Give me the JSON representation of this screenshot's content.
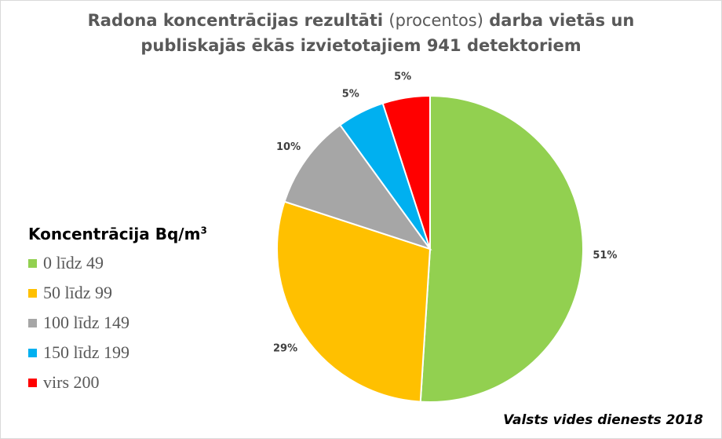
{
  "title": {
    "line1_a": "Radona koncentrācijas rezultāti ",
    "line1_b": "(procentos)",
    "line1_c": "  darba vietās un",
    "line2": "publiskajās ēkās izvietotajiem 941 detektoriem"
  },
  "legend": {
    "title_main": "Koncentrācija Bq/m",
    "title_sup": "3"
  },
  "source": "Valsts vides dienests 2018",
  "chart_data": {
    "type": "pie",
    "title": "Radona koncentrācijas rezultāti (procentos) darba vietās un publiskajās ēkās izvietotajiem 941 detektoriem",
    "legend_title": "Koncentrācija Bq/m3",
    "legend_position": "left",
    "slices": [
      {
        "name": "0 līdz 49",
        "value": 51,
        "label": "51%",
        "color": "#92D050"
      },
      {
        "name": "50 līdz 99",
        "value": 29,
        "label": "29%",
        "color": "#FFC000"
      },
      {
        "name": "100 līdz 149",
        "value": 10,
        "label": "10%",
        "color": "#A6A6A6"
      },
      {
        "name": "150 līdz 199",
        "value": 5,
        "label": "5%",
        "color": "#00B0F0"
      },
      {
        "name": "virs 200",
        "value": 5,
        "label": "5%",
        "color": "#FF0000"
      }
    ]
  }
}
